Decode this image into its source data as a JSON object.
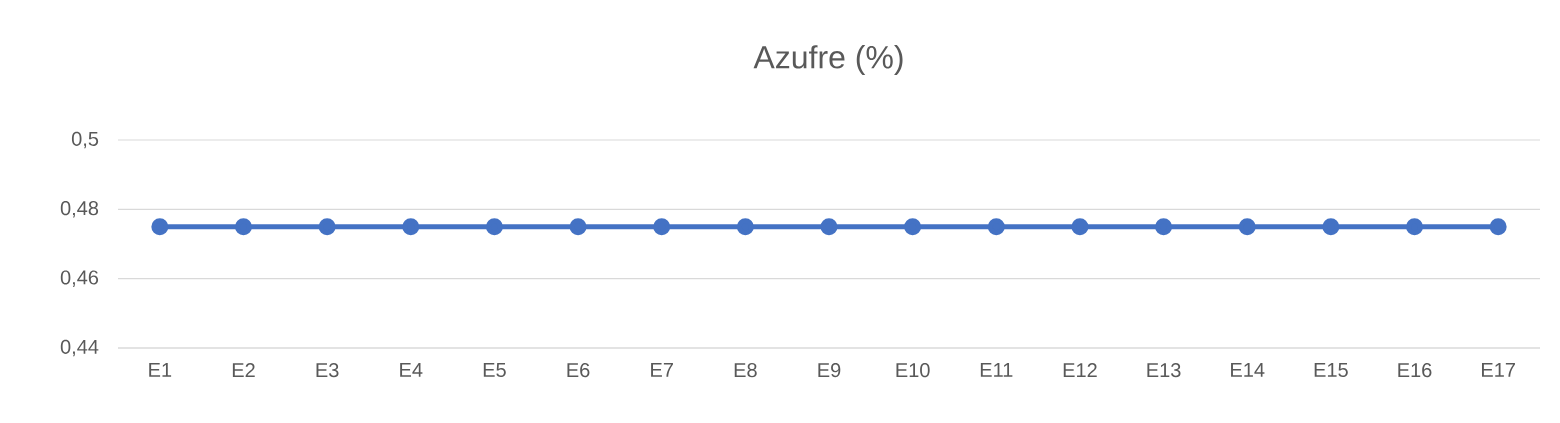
{
  "chart_data": {
    "type": "line",
    "title": "Azufre (%)",
    "categories": [
      "E1",
      "E2",
      "E3",
      "E4",
      "E5",
      "E6",
      "E7",
      "E8",
      "E9",
      "E10",
      "E11",
      "E12",
      "E13",
      "E14",
      "E15",
      "E16",
      "E17"
    ],
    "series": [
      {
        "color": "#4472c4",
        "values": [
          0.475,
          0.475,
          0.475,
          0.475,
          0.475,
          0.475,
          0.475,
          0.475,
          0.475,
          0.475,
          0.475,
          0.475,
          0.475,
          0.475,
          0.475,
          0.475,
          0.475
        ]
      }
    ],
    "ylim": [
      0.44,
      0.5
    ],
    "yticks": [
      {
        "value": 0.44,
        "label": "0,44"
      },
      {
        "value": 0.46,
        "label": "0,46"
      },
      {
        "value": 0.48,
        "label": "0,48"
      },
      {
        "value": 0.5,
        "label": "0,5"
      }
    ],
    "grid": "y",
    "marker": "circle",
    "line_style": "solid"
  }
}
